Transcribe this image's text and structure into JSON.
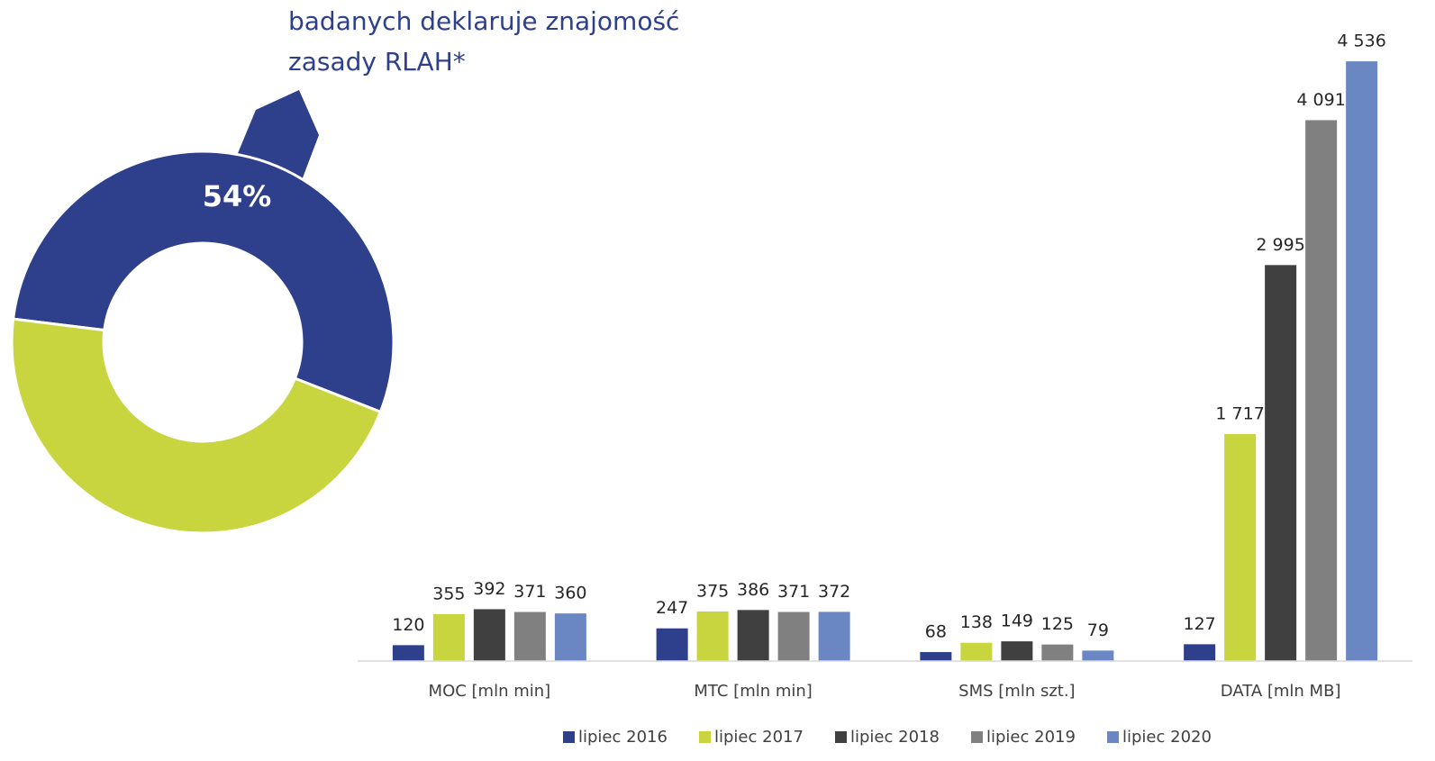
{
  "chart_data": [
    {
      "type": "donut",
      "annotation_lines": [
        "badanych deklaruje znajomość",
        "zasady RLAH*"
      ],
      "values": [
        54,
        46
      ],
      "value_labels": [
        "54%",
        null
      ],
      "colors": [
        "#2e3f8c",
        "#c8d53f"
      ]
    },
    {
      "type": "bar",
      "categories": [
        "MOC [mln min]",
        "MTC [mln min]",
        "SMS [mln szt.]",
        "DATA [mln MB]"
      ],
      "series": [
        {
          "name": "lipiec 2016",
          "color": "#2e3f8c",
          "values": [
            120,
            247,
            68,
            127
          ],
          "value_labels": [
            "120",
            "247",
            "68",
            "127"
          ]
        },
        {
          "name": "lipiec 2017",
          "color": "#c8d53f",
          "values": [
            355,
            375,
            138,
            1717
          ],
          "value_labels": [
            "355",
            "375",
            "138",
            "1 717"
          ]
        },
        {
          "name": "lipiec 2018",
          "color": "#404040",
          "values": [
            392,
            386,
            149,
            2995
          ],
          "value_labels": [
            "392",
            "386",
            "149",
            "2 995"
          ]
        },
        {
          "name": "lipiec 2019",
          "color": "#808080",
          "values": [
            371,
            371,
            125,
            4091
          ],
          "value_labels": [
            "371",
            "371",
            "125",
            "4 091"
          ]
        },
        {
          "name": "lipiec 2020",
          "color": "#6a87c4",
          "values": [
            360,
            372,
            79,
            4536
          ],
          "value_labels": [
            "360",
            "372",
            "79",
            "4 536"
          ]
        }
      ],
      "ylim": [
        0,
        5000
      ],
      "legend": "bottom"
    }
  ]
}
